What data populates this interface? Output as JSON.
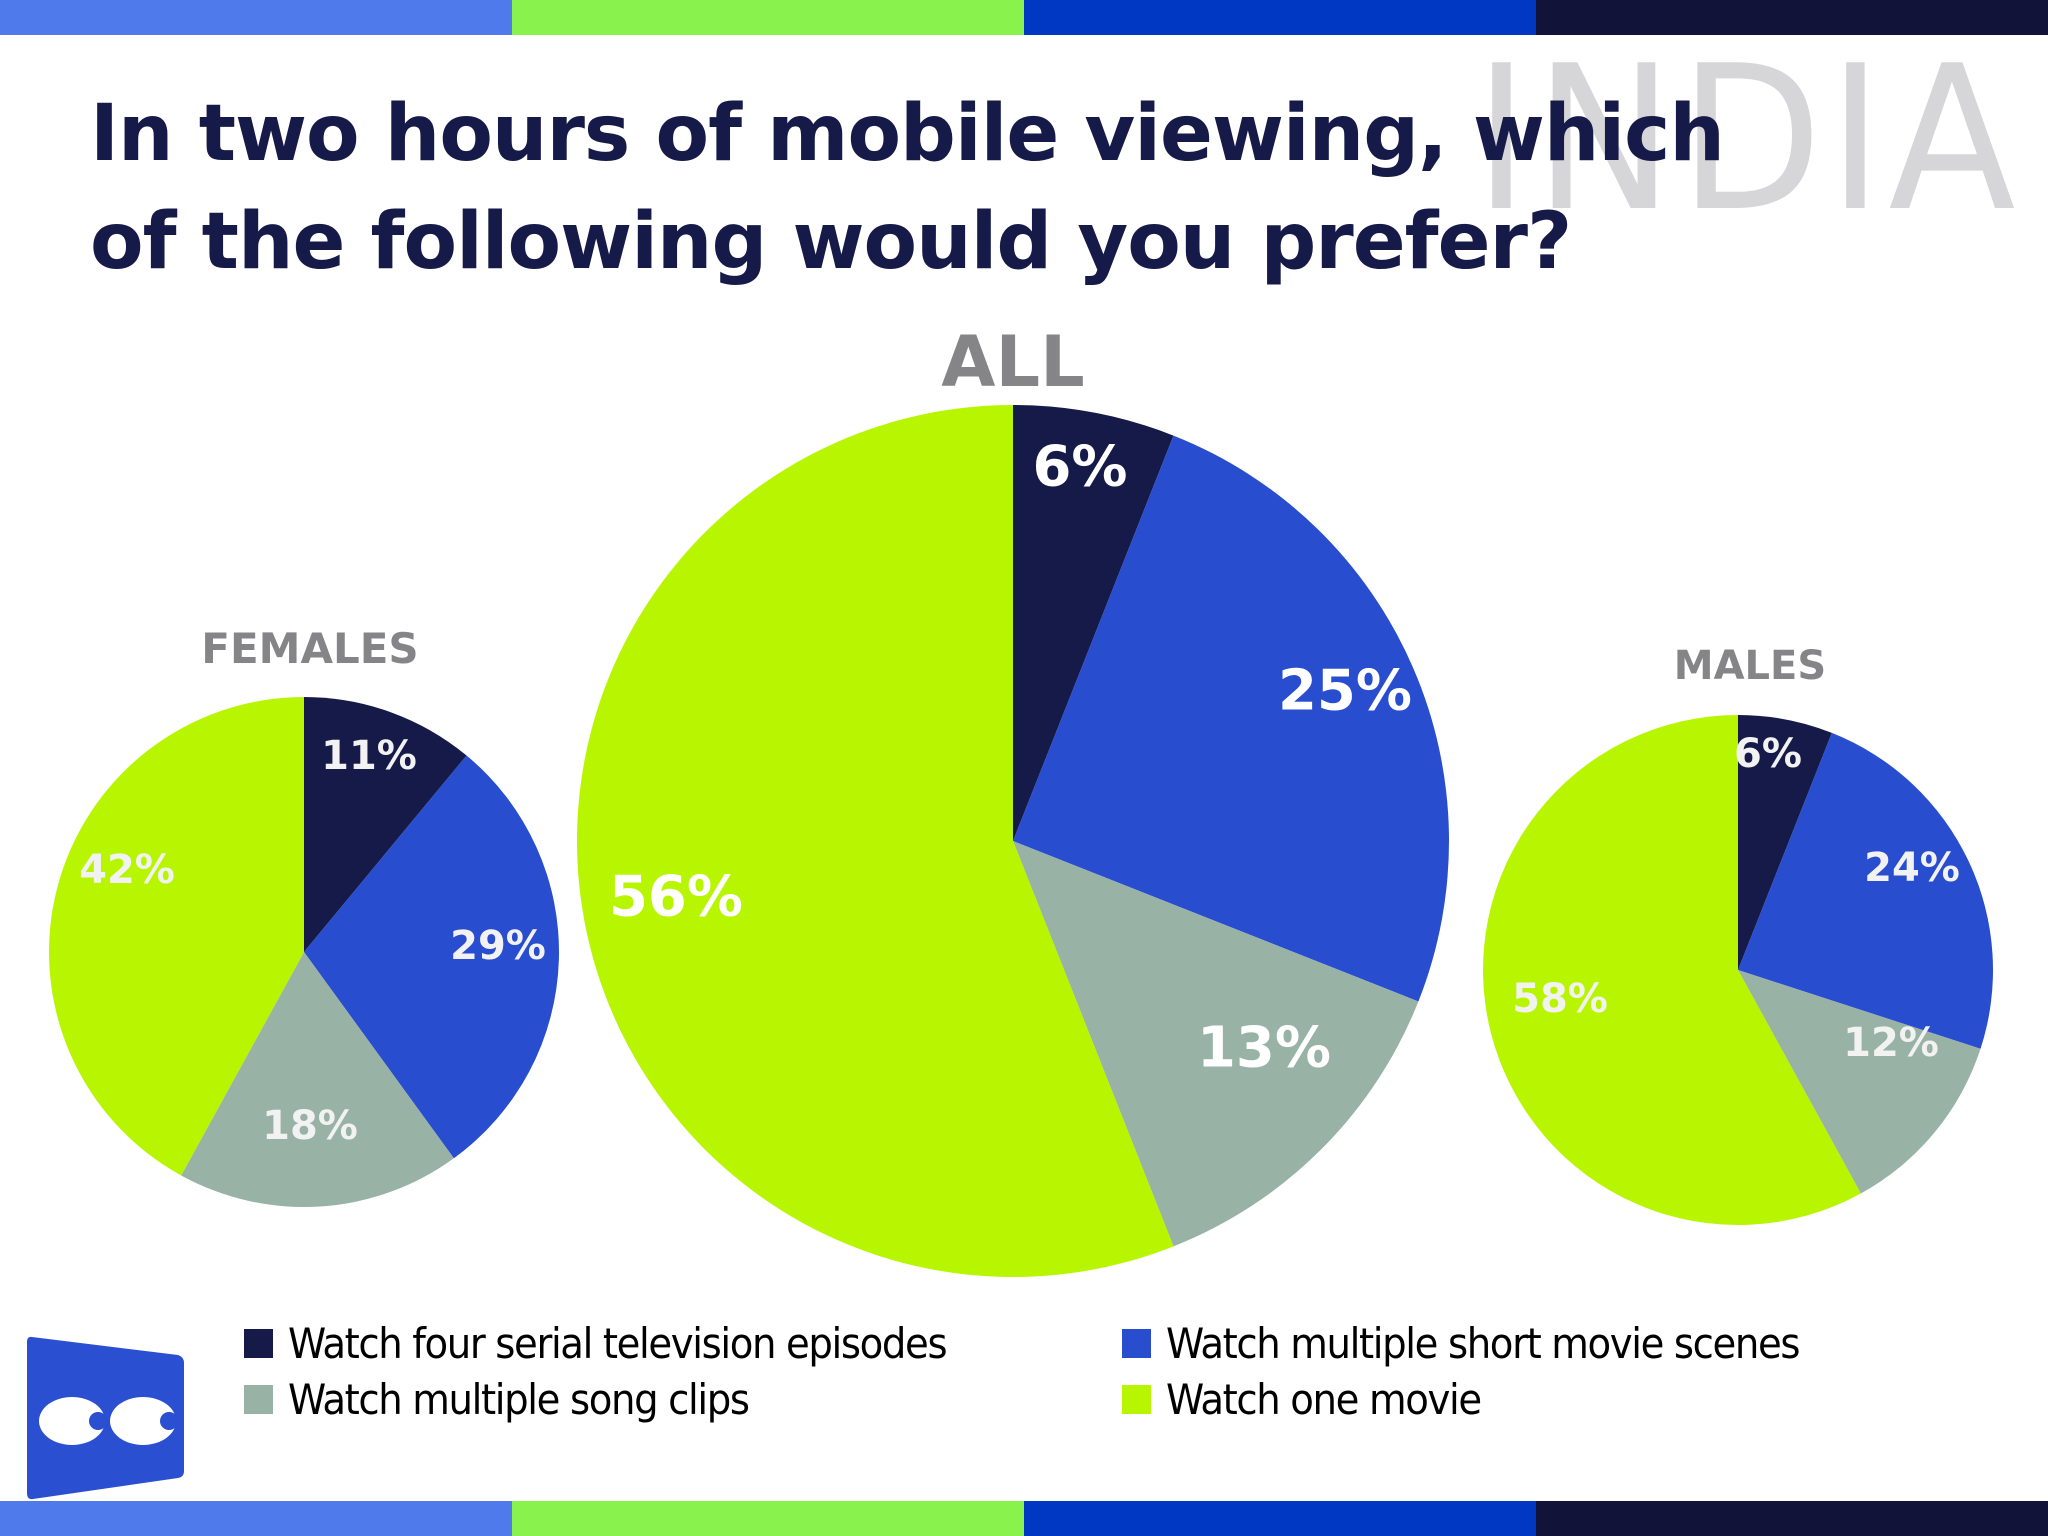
{
  "header": {
    "title": "In two hours of mobile viewing, which of the following would you prefer?",
    "watermark": "INDIA",
    "bar_colors": [
      "#4f7aeb",
      "#8af24c",
      "#0038c4",
      "#111338"
    ]
  },
  "legend": {
    "items": [
      {
        "label": "Watch four serial television episodes",
        "color": "#161a48"
      },
      {
        "label": "Watch multiple short movie scenes",
        "color": "#284dcf"
      },
      {
        "label": "Watch multiple song clips",
        "color": "#98b3a5"
      },
      {
        "label": "Watch one movie",
        "color": "#b8f500"
      }
    ]
  },
  "logo": {
    "icon": "eyes-logo-icon",
    "color": "#2a4fd1"
  },
  "chart_data": [
    {
      "type": "pie",
      "title": "FEMALES",
      "categories": [
        "Watch four serial television episodes",
        "Watch multiple short movie scenes",
        "Watch multiple song clips",
        "Watch one movie"
      ],
      "values": [
        11,
        29,
        18,
        42
      ],
      "labels": [
        "11%",
        "29%",
        "18%",
        "42%"
      ],
      "colors": [
        "#161a48",
        "#284dcf",
        "#98b3a5",
        "#b8f500"
      ],
      "start_angle": "12 o'clock, clockwise"
    },
    {
      "type": "pie",
      "title": "ALL",
      "categories": [
        "Watch four serial television episodes",
        "Watch multiple short movie scenes",
        "Watch multiple song clips",
        "Watch one movie"
      ],
      "values": [
        6,
        25,
        13,
        56
      ],
      "labels": [
        "6%",
        "25%",
        "13%",
        "56%"
      ],
      "colors": [
        "#161a48",
        "#284dcf",
        "#98b3a5",
        "#b8f500"
      ],
      "start_angle": "12 o'clock, clockwise"
    },
    {
      "type": "pie",
      "title": "MALES",
      "categories": [
        "Watch four serial television episodes",
        "Watch multiple short movie scenes",
        "Watch multiple song clips",
        "Watch one movie"
      ],
      "values": [
        6,
        24,
        12,
        58
      ],
      "labels": [
        "6%",
        "24%",
        "12%",
        "58%"
      ],
      "colors": [
        "#161a48",
        "#284dcf",
        "#98b3a5",
        "#b8f500"
      ],
      "start_angle": "12 o'clock, clockwise"
    }
  ]
}
